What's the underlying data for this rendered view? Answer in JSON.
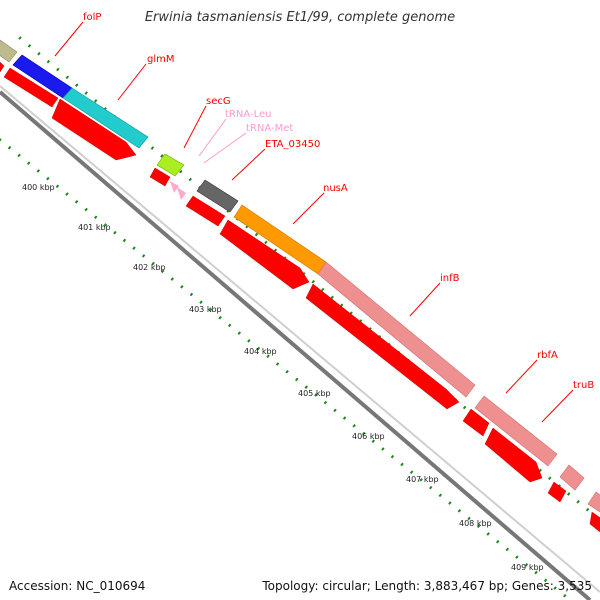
{
  "title": {
    "organism": "Erwinia tasmaniensis Et1/99",
    "suffix": ", complete genome"
  },
  "footer": {
    "accession": "Accession: NC_010694",
    "topology": "Topology: circular; Length: 3,883,467 bp; Genes: 3,535"
  },
  "colors": {
    "axis_line": "#9a9a9a",
    "tick_green": "#1a8a1a",
    "cds_red": "#ff0000",
    "label_red": "#ff0000",
    "label_pink": "#ff99cc",
    "folP": "#bdbb8b",
    "glmM_blue": "#1a1aee",
    "glmM_cyan": "#22cccc",
    "secG": "#aaee22",
    "trna": "#ffaacc",
    "ETA_03450": "#666666",
    "nusA": "#ff9900",
    "infB": "#ee9090",
    "rbfA": "#ee9090",
    "truB": "#ee9090"
  },
  "kbp_labels": [
    "400 kbp",
    "401 kbp",
    "402 kbp",
    "403 kbp",
    "404 kbp",
    "405 kbp",
    "406 kbp",
    "407 kbp",
    "408 kbp",
    "409 kbp"
  ],
  "genes": [
    {
      "id": "folP",
      "label": "folP"
    },
    {
      "id": "glmM",
      "label": "glmM"
    },
    {
      "id": "secG",
      "label": "secG"
    },
    {
      "id": "tRNA-Leu",
      "label": "tRNA-Leu"
    },
    {
      "id": "tRNA-Met",
      "label": "tRNA-Met"
    },
    {
      "id": "ETA_03450",
      "label": "ETA_03450"
    },
    {
      "id": "nusA",
      "label": "nusA"
    },
    {
      "id": "infB",
      "label": "infB"
    },
    {
      "id": "rbfA",
      "label": "rbfA"
    },
    {
      "id": "truB",
      "label": "truB"
    }
  ]
}
